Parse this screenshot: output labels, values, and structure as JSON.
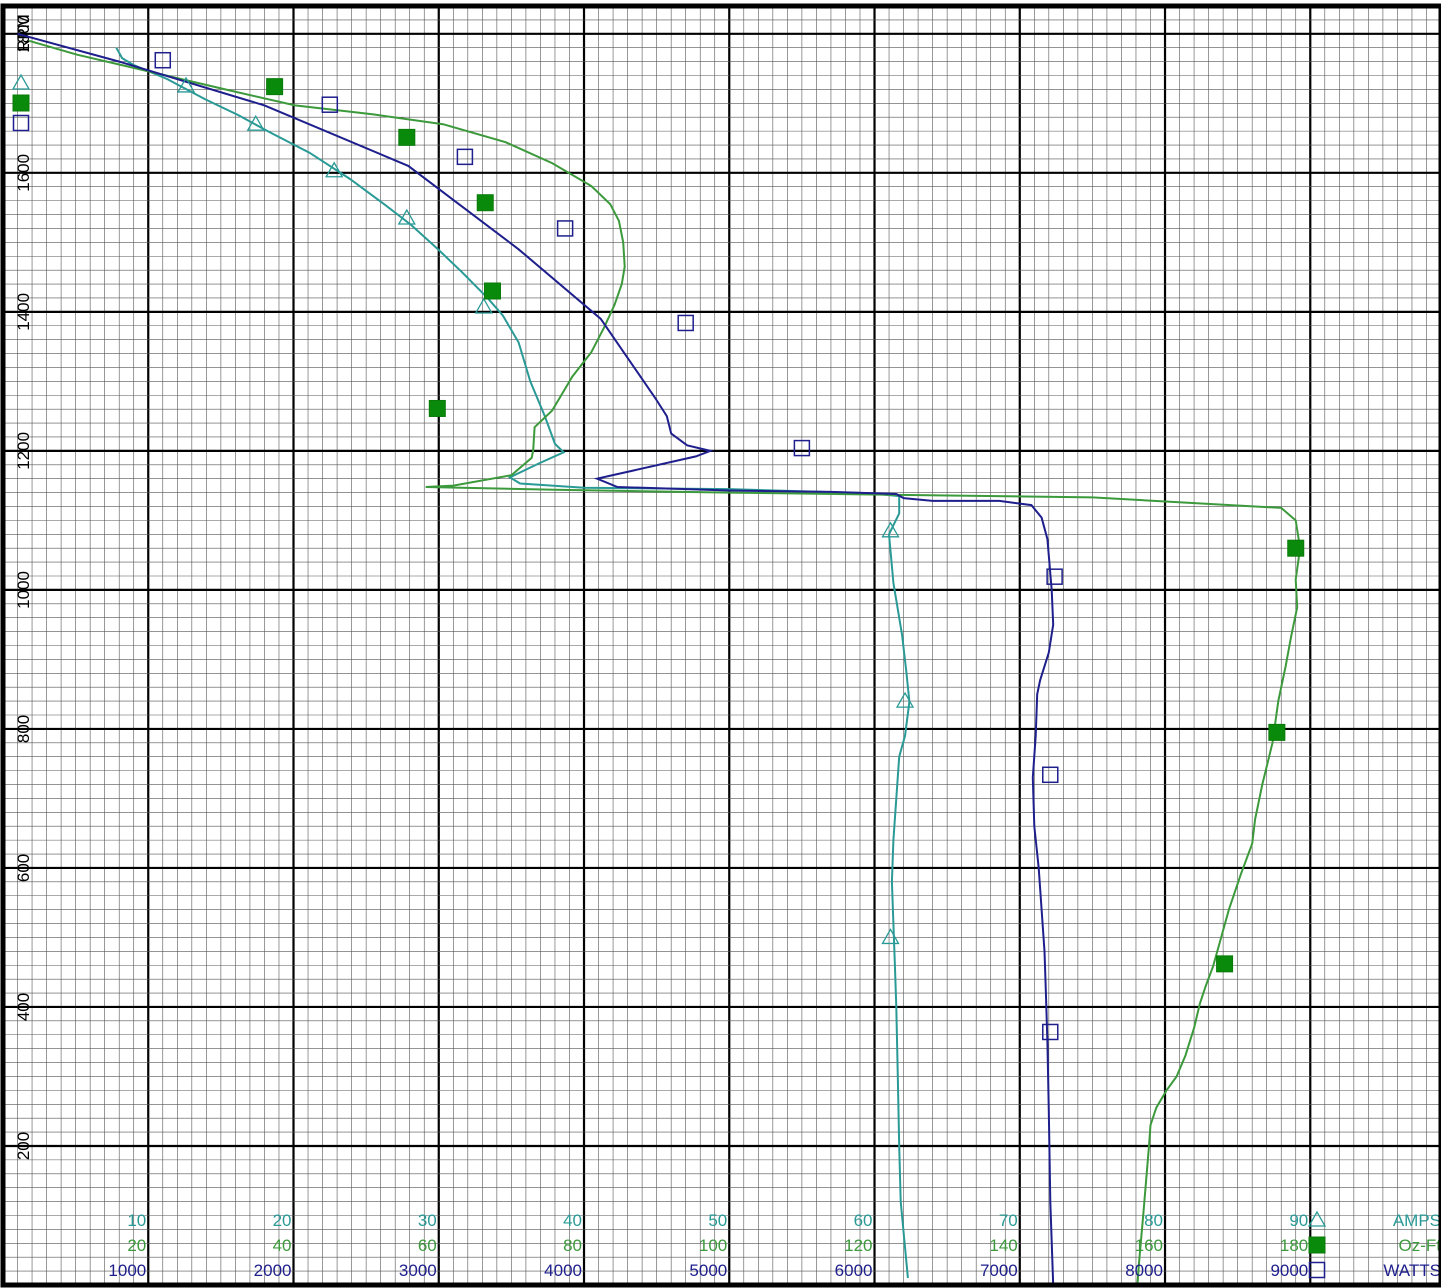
{
  "chart_data": {
    "type": "line",
    "axis_title": "RPM",
    "y_axis": {
      "label": "RPM",
      "ylim": [
        0,
        1840
      ],
      "ticks": [
        200,
        400,
        600,
        800,
        1000,
        1200,
        1400,
        1600,
        1800
      ]
    },
    "x_axis": {
      "xlim": [
        0,
        9900
      ],
      "tick_rows": [
        {
          "series": "AMPS",
          "labels": [
            "10",
            "20",
            "30",
            "40",
            "50",
            "60",
            "70",
            "80",
            "90"
          ]
        },
        {
          "series": "Oz-Ft",
          "labels": [
            "20",
            "40",
            "60",
            "80",
            "100",
            "120",
            "140",
            "160",
            "180"
          ]
        },
        {
          "series": "WATTS",
          "labels": [
            "1000",
            "2000",
            "3000",
            "4000",
            "5000",
            "6000",
            "7000",
            "8000",
            "9000"
          ]
        }
      ]
    },
    "grid": true,
    "legend_position": "bottom-right",
    "series": [
      {
        "name": "AMPS",
        "color": "#2a9a96",
        "marker": "open-triangle",
        "points": [
          [
            7.8,
            1780
          ],
          [
            8.2,
            1765
          ],
          [
            9.0,
            1755
          ],
          [
            11.3,
            1735
          ],
          [
            13.9,
            1706
          ],
          [
            16.2,
            1683
          ],
          [
            18.3,
            1659
          ],
          [
            21.1,
            1629
          ],
          [
            23.9,
            1591
          ],
          [
            26.3,
            1554
          ],
          [
            28.1,
            1525
          ],
          [
            29.9,
            1491
          ],
          [
            31.6,
            1457
          ],
          [
            33.4,
            1419
          ],
          [
            34.4,
            1395
          ],
          [
            35.5,
            1356
          ],
          [
            36.3,
            1300
          ],
          [
            37.3,
            1250
          ],
          [
            38.0,
            1210
          ],
          [
            38.6,
            1198
          ],
          [
            36.9,
            1182
          ],
          [
            34.9,
            1162
          ],
          [
            35.6,
            1153
          ],
          [
            40.0,
            1147
          ],
          [
            50.0,
            1145
          ],
          [
            59.7,
            1139
          ],
          [
            61.7,
            1135
          ],
          [
            61.7,
            1110
          ],
          [
            61.0,
            1080
          ],
          [
            61.3,
            1010
          ],
          [
            61.9,
            935
          ],
          [
            62.2,
            880
          ],
          [
            62.4,
            839
          ],
          [
            62.1,
            790
          ],
          [
            61.7,
            760
          ],
          [
            61.5,
            700
          ],
          [
            61.3,
            640
          ],
          [
            61.2,
            580
          ],
          [
            61.3,
            520
          ],
          [
            61.4,
            460
          ],
          [
            61.5,
            400
          ],
          [
            61.6,
            300
          ],
          [
            61.7,
            200
          ],
          [
            61.8,
            120
          ],
          [
            62.3,
            10
          ]
        ],
        "markers": [
          [
            12.6,
            1725
          ],
          [
            17.4,
            1670
          ],
          [
            22.8,
            1603
          ],
          [
            27.8,
            1535
          ],
          [
            33.1,
            1407
          ],
          [
            61.1,
            1085
          ],
          [
            62.1,
            840
          ],
          [
            61.1,
            500
          ]
        ]
      },
      {
        "name": "Oz-Ft",
        "color": "#3c9a3c",
        "marker": "filled-square",
        "points": [
          [
            3.6,
            1790
          ],
          [
            10.2,
            1770
          ],
          [
            20.4,
            1745
          ],
          [
            30.6,
            1720
          ],
          [
            40.2,
            1697
          ],
          [
            51.0,
            1684
          ],
          [
            60.6,
            1670
          ],
          [
            69.2,
            1644
          ],
          [
            75.6,
            1614
          ],
          [
            81.0,
            1581
          ],
          [
            83.6,
            1555
          ],
          [
            84.8,
            1531
          ],
          [
            85.4,
            1500
          ],
          [
            85.6,
            1465
          ],
          [
            85.2,
            1440
          ],
          [
            84.2,
            1410
          ],
          [
            82.8,
            1378
          ],
          [
            81.0,
            1342
          ],
          [
            78.4,
            1307
          ],
          [
            75.6,
            1258
          ],
          [
            73.2,
            1234
          ],
          [
            73.0,
            1201
          ],
          [
            72.8,
            1190
          ],
          [
            70.0,
            1165
          ],
          [
            62.0,
            1150
          ],
          [
            58.2,
            1148
          ],
          [
            76.0,
            1144
          ],
          [
            100.0,
            1140
          ],
          [
            150.0,
            1133
          ],
          [
            176.0,
            1118
          ],
          [
            178.0,
            1100
          ],
          [
            178.6,
            1060
          ],
          [
            178.0,
            1015
          ],
          [
            178.2,
            975
          ],
          [
            177.4,
            935
          ],
          [
            176.6,
            890
          ],
          [
            175.6,
            840
          ],
          [
            174.8,
            780
          ],
          [
            173.4,
            720
          ],
          [
            172.4,
            670
          ],
          [
            172.0,
            635
          ],
          [
            170.4,
            590
          ],
          [
            168.8,
            540
          ],
          [
            167.6,
            495
          ],
          [
            166.6,
            458
          ],
          [
            165.6,
            430
          ],
          [
            164.8,
            405
          ],
          [
            164.0,
            370
          ],
          [
            162.8,
            330
          ],
          [
            161.6,
            300
          ],
          [
            160.2,
            280
          ],
          [
            158.8,
            255
          ],
          [
            158.0,
            230
          ],
          [
            157.8,
            200
          ],
          [
            157.4,
            150
          ],
          [
            157.0,
            100
          ],
          [
            156.4,
            30
          ],
          [
            156.2,
            0
          ]
        ],
        "markers": [
          [
            1.4,
            1880
          ],
          [
            37.4,
            1724
          ],
          [
            55.6,
            1651
          ],
          [
            66.4,
            1557
          ],
          [
            67.4,
            1430
          ],
          [
            59.8,
            1261
          ],
          [
            178.0,
            1060
          ],
          [
            175.4,
            795
          ],
          [
            168.2,
            462
          ]
        ]
      },
      {
        "name": "WATTS",
        "color": "#1e1f8c",
        "marker": "open-square",
        "points": [
          [
            100,
            1800
          ],
          [
            800,
            1760
          ],
          [
            1800,
            1697
          ],
          [
            2790,
            1610
          ],
          [
            3550,
            1490
          ],
          [
            4115,
            1390
          ],
          [
            4490,
            1276
          ],
          [
            4570,
            1250
          ],
          [
            4600,
            1225
          ],
          [
            4710,
            1208
          ],
          [
            4870,
            1200
          ],
          [
            4770,
            1192
          ],
          [
            4090,
            1160
          ],
          [
            4230,
            1148
          ],
          [
            5000,
            1143
          ],
          [
            5700,
            1141
          ],
          [
            6150,
            1138
          ],
          [
            6200,
            1132
          ],
          [
            6400,
            1128
          ],
          [
            6860,
            1128
          ],
          [
            7080,
            1122
          ],
          [
            7150,
            1104
          ],
          [
            7190,
            1073
          ],
          [
            7220,
            1000
          ],
          [
            7230,
            950
          ],
          [
            7200,
            910
          ],
          [
            7140,
            870
          ],
          [
            7120,
            850
          ],
          [
            7110,
            790
          ],
          [
            7090,
            730
          ],
          [
            7100,
            660
          ],
          [
            7130,
            600
          ],
          [
            7150,
            540
          ],
          [
            7170,
            480
          ],
          [
            7180,
            420
          ],
          [
            7190,
            350
          ],
          [
            7200,
            250
          ],
          [
            7210,
            120
          ],
          [
            7230,
            0
          ]
        ],
        "markers": [
          [
            100,
            1871
          ],
          [
            1100,
            1762
          ],
          [
            2250,
            1698
          ],
          [
            3180,
            1623
          ],
          [
            3870,
            1520
          ],
          [
            4700,
            1384
          ],
          [
            5500,
            1204
          ],
          [
            7240,
            1019
          ],
          [
            7210,
            734
          ],
          [
            7210,
            364
          ]
        ]
      }
    ],
    "legend": [
      {
        "label": "AMPS",
        "color": "#2a9a96",
        "marker": "open-triangle"
      },
      {
        "label": "Oz-Ft",
        "color": "#3c9a3c",
        "marker": "filled-square"
      },
      {
        "label": "WATTS",
        "color": "#1e1f8c",
        "marker": "open-square"
      }
    ]
  }
}
